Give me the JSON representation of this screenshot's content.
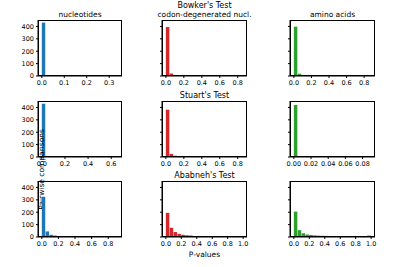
{
  "row_titles": [
    "Bowker's Test",
    "Stuart's Test",
    "Ababneh's Test"
  ],
  "chart_data": [
    {
      "type": "histogram",
      "title": "nucleotides",
      "color": "#1f77b4",
      "bins": [
        0,
        0.017,
        0.034,
        0.051,
        0.068,
        0.085,
        0.102,
        0.119,
        0.136,
        0.153,
        0.17,
        0.187,
        0.204,
        0.221,
        0.238,
        0.255,
        0.272,
        0.289,
        0.306,
        0.323,
        0.34
      ],
      "counts": [
        431,
        0,
        0,
        0,
        0,
        0,
        0,
        0,
        0,
        0,
        0,
        0,
        0,
        0,
        0,
        1,
        0,
        0,
        0,
        3
      ],
      "xlim": [
        -0.017,
        0.357
      ],
      "xticks": [
        {
          "value": 0,
          "label": "0.0"
        },
        {
          "value": 0.1,
          "label": "0.1"
        },
        {
          "value": 0.2,
          "label": "0.2"
        },
        {
          "value": 0.3,
          "label": "0.3"
        }
      ],
      "ylim": [
        0,
        452
      ],
      "yticks": [
        0,
        100,
        200,
        300,
        400
      ]
    },
    {
      "type": "histogram",
      "title": "codon-degenerated nucl.",
      "color": "#d62728",
      "bins": [
        0,
        0.043,
        0.086,
        0.129,
        0.172,
        0.215,
        0.258,
        0.301,
        0.344,
        0.387,
        0.43,
        0.473,
        0.516,
        0.559,
        0.602,
        0.645,
        0.688,
        0.731,
        0.774,
        0.817,
        0.86
      ],
      "counts": [
        395,
        20,
        6,
        3,
        2,
        1,
        1,
        0,
        1,
        0,
        1,
        0,
        1,
        0,
        0,
        1,
        0,
        0,
        1,
        2
      ],
      "xlim": [
        -0.043,
        0.903
      ],
      "xticks": [
        {
          "value": 0,
          "label": "0.0"
        },
        {
          "value": 0.2,
          "label": "0.2"
        },
        {
          "value": 0.4,
          "label": "0.4"
        },
        {
          "value": 0.6,
          "label": "0.6"
        },
        {
          "value": 0.8,
          "label": "0.8"
        }
      ],
      "ylim": [
        0,
        452
      ],
      "yticks": [
        0,
        100,
        200,
        300,
        400
      ],
      "tick_labels": "x"
    },
    {
      "type": "histogram",
      "title": "amino acids",
      "color": "#2ca02c",
      "bins": [
        0,
        0.044,
        0.088,
        0.132,
        0.176,
        0.22,
        0.264,
        0.308,
        0.352,
        0.396,
        0.44,
        0.484,
        0.528,
        0.572,
        0.616,
        0.66,
        0.704,
        0.748,
        0.792,
        0.836,
        0.88
      ],
      "counts": [
        398,
        18,
        5,
        3,
        2,
        1,
        1,
        1,
        0,
        1,
        0,
        1,
        0,
        0,
        1,
        0,
        1,
        0,
        0,
        2
      ],
      "xlim": [
        -0.044,
        0.924
      ],
      "xticks": [
        {
          "value": 0,
          "label": "0.0"
        },
        {
          "value": 0.2,
          "label": "0.2"
        },
        {
          "value": 0.4,
          "label": "0.4"
        },
        {
          "value": 0.6,
          "label": "0.6"
        },
        {
          "value": 0.8,
          "label": "0.8"
        }
      ],
      "ylim": [
        0,
        452
      ],
      "yticks": [
        0,
        100,
        200,
        300,
        400
      ],
      "tick_labels": "x"
    },
    {
      "type": "histogram",
      "ylabel": "Pairwise comparisons",
      "color": "#1f77b4",
      "bins": [
        0,
        0.033,
        0.066,
        0.099,
        0.132,
        0.165,
        0.198,
        0.231,
        0.264,
        0.297,
        0.33,
        0.363,
        0.396,
        0.429,
        0.462,
        0.495,
        0.528,
        0.561,
        0.594,
        0.627,
        0.66
      ],
      "counts": [
        430,
        2,
        1,
        0,
        0,
        0,
        0,
        0,
        0,
        0,
        0,
        0,
        0,
        0,
        0,
        0,
        0,
        0,
        0,
        2
      ],
      "xlim": [
        -0.033,
        0.693
      ],
      "xticks": [
        {
          "value": 0,
          "label": "0.0"
        },
        {
          "value": 0.2,
          "label": "0.2"
        },
        {
          "value": 0.4,
          "label": "0.4"
        },
        {
          "value": 0.6,
          "label": "0.6"
        }
      ],
      "ylim": [
        0,
        452
      ],
      "yticks": [
        0,
        100,
        200,
        300,
        400
      ]
    },
    {
      "type": "histogram",
      "color": "#d62728",
      "bins": [
        0,
        0.043,
        0.086,
        0.129,
        0.172,
        0.215,
        0.258,
        0.301,
        0.344,
        0.387,
        0.43,
        0.473,
        0.516,
        0.559,
        0.602,
        0.645,
        0.688,
        0.731,
        0.774,
        0.817,
        0.86
      ],
      "counts": [
        382,
        25,
        10,
        5,
        3,
        2,
        1,
        1,
        1,
        0,
        1,
        0,
        1,
        0,
        0,
        1,
        0,
        0,
        1,
        1
      ],
      "xlim": [
        -0.043,
        0.903
      ],
      "xticks": [
        {
          "value": 0,
          "label": "0.0"
        },
        {
          "value": 0.2,
          "label": "0.2"
        },
        {
          "value": 0.4,
          "label": "0.4"
        },
        {
          "value": 0.6,
          "label": "0.6"
        },
        {
          "value": 0.8,
          "label": "0.8"
        }
      ],
      "ylim": [
        0,
        452
      ],
      "yticks": [
        0,
        100,
        200,
        300,
        400
      ],
      "tick_labels": "x"
    },
    {
      "type": "histogram",
      "color": "#2ca02c",
      "bins": [
        0,
        0.0045,
        0.009,
        0.0135,
        0.018,
        0.0225,
        0.027,
        0.0315,
        0.036,
        0.0405,
        0.045,
        0.0495,
        0.054,
        0.0585,
        0.063,
        0.0675,
        0.072,
        0.0765,
        0.081,
        0.0855,
        0.09
      ],
      "counts": [
        420,
        6,
        2,
        1,
        1,
        0,
        1,
        0,
        1,
        0,
        0,
        1,
        0,
        0,
        0,
        1,
        0,
        0,
        0,
        1
      ],
      "xlim": [
        -0.0045,
        0.0945
      ],
      "xticks": [
        {
          "value": 0,
          "label": "0.00"
        },
        {
          "value": 0.02,
          "label": "0.02"
        },
        {
          "value": 0.04,
          "label": "0.04"
        },
        {
          "value": 0.06,
          "label": "0.06"
        },
        {
          "value": 0.08,
          "label": "0.08"
        }
      ],
      "ylim": [
        0,
        452
      ],
      "yticks": [
        0,
        100,
        200,
        300,
        400
      ],
      "tick_labels": "x"
    },
    {
      "type": "histogram",
      "color": "#1f77b4",
      "bins": [
        0,
        0.046,
        0.092,
        0.138,
        0.184,
        0.23,
        0.276,
        0.322,
        0.368,
        0.414,
        0.46,
        0.506,
        0.552,
        0.598,
        0.644,
        0.69,
        0.736,
        0.782,
        0.828,
        0.874,
        0.92
      ],
      "counts": [
        325,
        45,
        18,
        12,
        8,
        5,
        4,
        3,
        3,
        2,
        2,
        1,
        1,
        1,
        1,
        1,
        1,
        0,
        1,
        1
      ],
      "xlim": [
        -0.046,
        0.966
      ],
      "xticks": [
        {
          "value": 0,
          "label": "0.0"
        },
        {
          "value": 0.2,
          "label": "0.2"
        },
        {
          "value": 0.4,
          "label": "0.4"
        },
        {
          "value": 0.6,
          "label": "0.6"
        },
        {
          "value": 0.8,
          "label": "0.8"
        }
      ],
      "ylim": [
        0,
        452
      ],
      "yticks": [
        0,
        100,
        200,
        300,
        400
      ]
    },
    {
      "type": "histogram",
      "xlabel": "P-values",
      "color": "#d62728",
      "bins": [
        0,
        0.05,
        0.1,
        0.15,
        0.2,
        0.25,
        0.3,
        0.35,
        0.4,
        0.45,
        0.5,
        0.55,
        0.6,
        0.65,
        0.7,
        0.75,
        0.8,
        0.85,
        0.9,
        0.95,
        1
      ],
      "counts": [
        195,
        75,
        40,
        25,
        18,
        14,
        12,
        8,
        7,
        6,
        5,
        5,
        4,
        3,
        3,
        3,
        2,
        2,
        2,
        6
      ],
      "xlim": [
        -0.05,
        1.05
      ],
      "xticks": [
        {
          "value": 0,
          "label": "0.0"
        },
        {
          "value": 0.2,
          "label": "0.2"
        },
        {
          "value": 0.4,
          "label": "0.4"
        },
        {
          "value": 0.6,
          "label": "0.6"
        },
        {
          "value": 0.8,
          "label": "0.8"
        },
        {
          "value": 1,
          "label": "1.0"
        }
      ],
      "ylim": [
        0,
        452
      ],
      "yticks": [
        0,
        100,
        200,
        300,
        400
      ],
      "tick_labels": "x"
    },
    {
      "type": "histogram",
      "color": "#2ca02c",
      "bins": [
        0,
        0.05,
        0.1,
        0.15,
        0.2,
        0.25,
        0.3,
        0.35,
        0.4,
        0.45,
        0.5,
        0.55,
        0.6,
        0.65,
        0.7,
        0.75,
        0.8,
        0.85,
        0.9,
        0.95,
        1
      ],
      "counts": [
        205,
        55,
        30,
        20,
        16,
        13,
        11,
        10,
        9,
        8,
        7,
        6,
        5,
        5,
        4,
        4,
        3,
        3,
        3,
        12
      ],
      "xlim": [
        -0.05,
        1.05
      ],
      "xticks": [
        {
          "value": 0,
          "label": "0.0"
        },
        {
          "value": 0.2,
          "label": "0.2"
        },
        {
          "value": 0.4,
          "label": "0.4"
        },
        {
          "value": 0.6,
          "label": "0.6"
        },
        {
          "value": 0.8,
          "label": "0.8"
        },
        {
          "value": 1,
          "label": "1.0"
        }
      ],
      "ylim": [
        0,
        452
      ],
      "yticks": [
        0,
        100,
        200,
        300,
        400
      ],
      "tick_labels": "x"
    }
  ]
}
